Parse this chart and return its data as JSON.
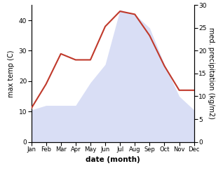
{
  "months": [
    "Jan",
    "Feb",
    "Mar",
    "Apr",
    "May",
    "Jun",
    "Jul",
    "Aug",
    "Sep",
    "Oct",
    "Nov",
    "Dec"
  ],
  "temp": [
    11,
    19,
    29,
    27,
    27,
    38,
    43,
    42,
    35,
    25,
    17,
    17
  ],
  "precip": [
    7,
    8,
    8,
    8,
    13,
    17,
    29,
    28,
    25,
    17,
    10,
    7
  ],
  "temp_color": "#c0392b",
  "precip_fill_color": "#c5cdf0",
  "precip_alpha": 0.65,
  "temp_ylim": [
    0,
    45
  ],
  "precip_ylim": [
    0,
    30
  ],
  "temp_yticks": [
    0,
    10,
    20,
    30,
    40
  ],
  "precip_yticks": [
    0,
    5,
    10,
    15,
    20,
    25,
    30
  ],
  "xlabel": "date (month)",
  "ylabel_left": "max temp (C)",
  "ylabel_right": "med. precipitation (kg/m2)",
  "background_color": "#ffffff",
  "temp_linewidth": 1.5,
  "xlabel_fontsize": 7.5,
  "ylabel_fontsize": 7.0,
  "tick_fontsize": 6.5,
  "xtick_fontsize": 6.0
}
